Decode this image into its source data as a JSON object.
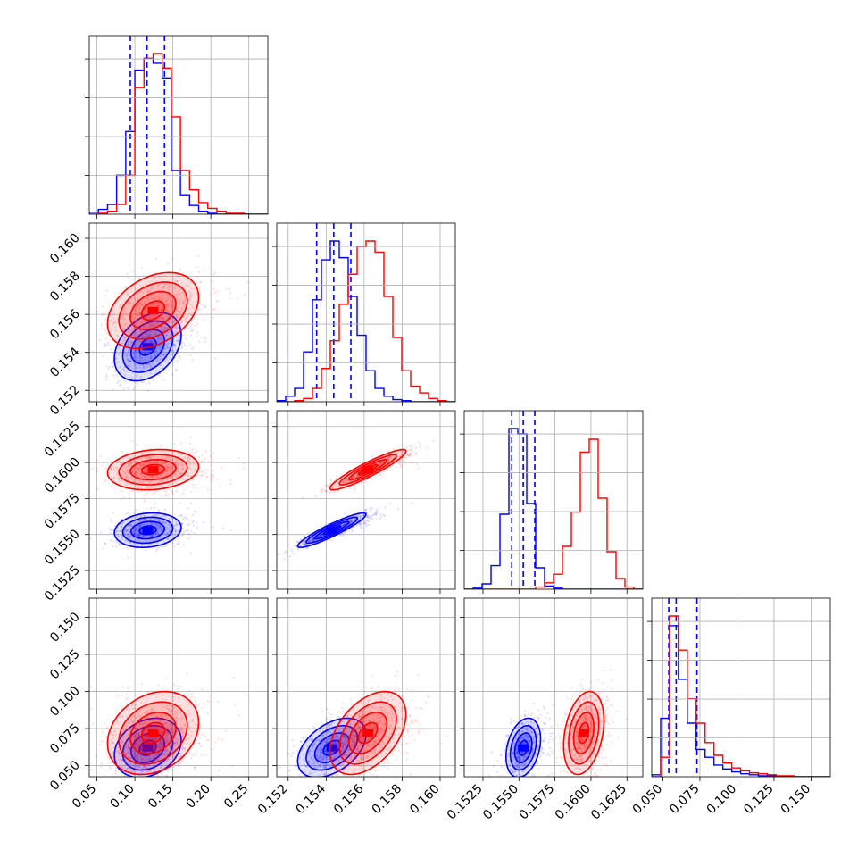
{
  "chart_data": {
    "type": "corner",
    "title": "",
    "grid": true,
    "colors": {
      "blue": "#0000ff",
      "red": "#ff0000"
    },
    "parameters": [
      {
        "ticks": [
          "0.05",
          "0.10",
          "0.15",
          "0.20",
          "0.25"
        ],
        "range": [
          0.04,
          0.275
        ]
      },
      {
        "ticks": [
          "0.152",
          "0.154",
          "0.156",
          "0.158",
          "0.160"
        ],
        "range": [
          0.1514,
          0.1608
        ]
      },
      {
        "ticks": [
          "0.1525",
          "0.1550",
          "0.1575",
          "0.1600",
          "0.1625"
        ],
        "range": [
          0.1512,
          0.1636
        ]
      },
      {
        "ticks": [
          "0.050",
          "0.075",
          "0.100",
          "0.125",
          "0.150"
        ],
        "range": [
          0.0425,
          0.163
        ]
      }
    ],
    "series": [
      {
        "color": "#0000ff",
        "mean": [
          0.117,
          0.1543,
          0.1553,
          0.062
        ],
        "std": [
          0.022,
          0.0009,
          0.0006,
          0.01
        ],
        "quantiles": [
          [
            0.094,
            0.116,
            0.139
          ],
          [
            0.1535,
            0.1544,
            0.1553
          ],
          [
            0.1545,
            0.1553,
            0.1561
          ],
          [
            0.054,
            0.059,
            0.073
          ]
        ],
        "histograms": [
          {
            "x": [
              0.04,
              0.052,
              0.064,
              0.076,
              0.088,
              0.1,
              0.112,
              0.124,
              0.136,
              0.148,
              0.16,
              0.172,
              0.184,
              0.196,
              0.208,
              0.22,
              0.232,
              0.244,
              0.256,
              0.268
            ],
            "counts": [
              2,
              5,
              10,
              40,
              85,
              148,
              160,
              155,
              140,
              45,
              20,
              9,
              3,
              1,
              0,
              0,
              0,
              0,
              0,
              0
            ]
          },
          {
            "x": [
              0.1514,
              0.15187,
              0.15234,
              0.15281,
              0.15328,
              0.15375,
              0.15422,
              0.15469,
              0.15516,
              0.15563,
              0.1561,
              0.15657,
              0.15704,
              0.15751,
              0.15798,
              0.15845,
              0.15892,
              0.15939,
              0.15986,
              0.16033
            ],
            "counts": [
              1,
              5,
              12,
              45,
              92,
              128,
              145,
              130,
              95,
              60,
              28,
              12,
              5,
              2,
              1,
              0,
              0,
              0,
              0,
              0
            ]
          },
          {
            "x": [
              0.1512,
              0.15182,
              0.15244,
              0.15306,
              0.15368,
              0.1543,
              0.15492,
              0.15554,
              0.15616,
              0.15678,
              0.1574,
              0.15802,
              0.15864,
              0.15926,
              0.15988,
              0.1605,
              0.16112,
              0.16174,
              0.16236,
              0.16298
            ],
            "counts": [
              0,
              1,
              5,
              22,
              70,
              150,
              145,
              80,
              20,
              3,
              1,
              0,
              0,
              0,
              0,
              0,
              0,
              0,
              0,
              0
            ]
          },
          {
            "x": [
              0.0425,
              0.0485,
              0.0545,
              0.0605,
              0.0665,
              0.0725,
              0.0785,
              0.0845,
              0.0905,
              0.0965,
              0.1025,
              0.1085,
              0.1145,
              0.1205,
              0.1265,
              0.1325,
              0.1385,
              0.1445,
              0.1505,
              0.1565
            ],
            "counts": [
              2,
              60,
              155,
              100,
              55,
              28,
              20,
              12,
              8,
              5,
              3,
              2,
              1,
              1,
              0,
              0,
              0,
              0,
              0,
              0
            ]
          }
        ]
      },
      {
        "color": "#ff0000",
        "mean": [
          0.124,
          0.1562,
          0.1595,
          0.072
        ],
        "std": [
          0.03,
          0.001,
          0.0007,
          0.014
        ],
        "quantiles": [],
        "histograms": [
          {
            "x": [
              0.04,
              0.052,
              0.064,
              0.076,
              0.088,
              0.1,
              0.112,
              0.124,
              0.136,
              0.148,
              0.16,
              0.172,
              0.184,
              0.196,
              0.208,
              0.22,
              0.232,
              0.244,
              0.256,
              0.268
            ],
            "counts": [
              0,
              1,
              3,
              10,
              40,
              130,
              160,
              165,
              150,
              100,
              45,
              25,
              12,
              6,
              3,
              1,
              1,
              0,
              0,
              0
            ]
          },
          {
            "x": [
              0.1514,
              0.15187,
              0.15234,
              0.15281,
              0.15328,
              0.15375,
              0.15422,
              0.15469,
              0.15516,
              0.15563,
              0.1561,
              0.15657,
              0.15704,
              0.15751,
              0.15798,
              0.15845,
              0.15892,
              0.15939,
              0.15986,
              0.16033
            ],
            "counts": [
              0,
              0,
              1,
              3,
              12,
              30,
              55,
              88,
              115,
              140,
              145,
              135,
              95,
              58,
              28,
              14,
              8,
              3,
              1,
              0
            ]
          },
          {
            "x": [
              0.1512,
              0.15182,
              0.15244,
              0.15306,
              0.15368,
              0.1543,
              0.15492,
              0.15554,
              0.15616,
              0.15678,
              0.1574,
              0.15802,
              0.15864,
              0.15926,
              0.15988,
              0.1605,
              0.16112,
              0.16174,
              0.16236,
              0.16298
            ],
            "counts": [
              0,
              0,
              0,
              0,
              0,
              0,
              0,
              0,
              2,
              6,
              14,
              40,
              72,
              128,
              140,
              85,
              35,
              10,
              2,
              0
            ]
          },
          {
            "x": [
              0.0425,
              0.0485,
              0.0545,
              0.0605,
              0.0665,
              0.0725,
              0.0785,
              0.0845,
              0.0905,
              0.0965,
              0.1025,
              0.1085,
              0.1145,
              0.1205,
              0.1265,
              0.1325,
              0.1385,
              0.1445,
              0.1505,
              0.1565
            ],
            "counts": [
              0,
              20,
              165,
              130,
              80,
              55,
              35,
              22,
              14,
              9,
              6,
              4,
              3,
              2,
              1,
              1,
              0,
              0,
              0,
              0
            ]
          }
        ]
      }
    ]
  }
}
